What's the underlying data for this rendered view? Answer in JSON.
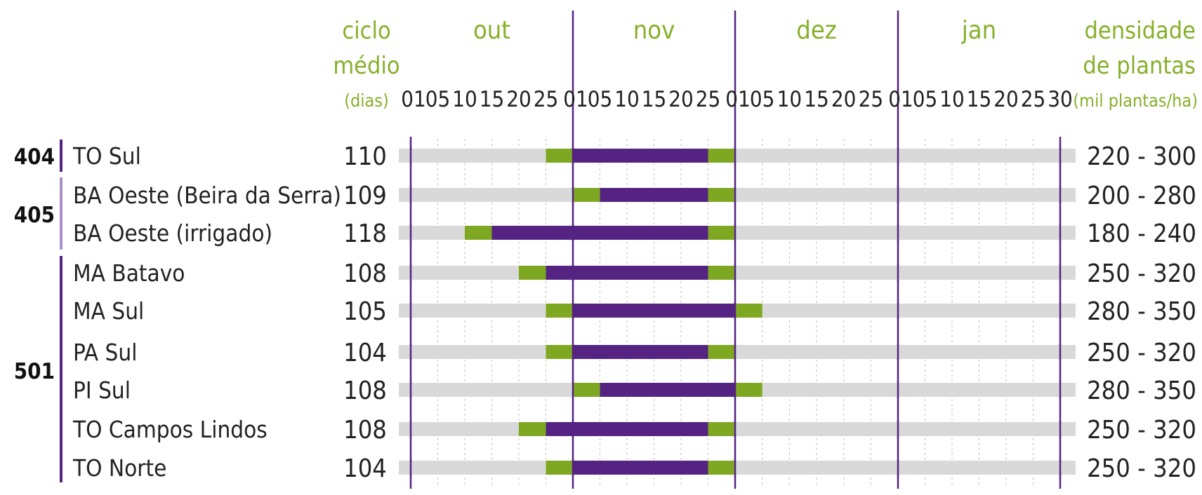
{
  "colors": {
    "track": "#d9d9d9",
    "green": "#7ea722",
    "purple": "#552382",
    "header_green": "#86b02a",
    "divider": "#552382",
    "gridline": "#bdbdbd"
  },
  "headers": {
    "cycle_line1": "ciclo",
    "cycle_line2": "médio",
    "cycle_unit": "(dias)",
    "density_line1": "densidade",
    "density_line2": "de plantas",
    "density_unit": "(mil plantas/ha)"
  },
  "chart_data": {
    "type": "gantt",
    "months": [
      "out",
      "nov",
      "dez",
      "jan"
    ],
    "day_ticks": [
      [
        "01",
        "05",
        "10",
        "15",
        "20",
        "25"
      ],
      [
        "01",
        "05",
        "10",
        "15",
        "20",
        "25"
      ],
      [
        "01",
        "05",
        "10",
        "15",
        "20",
        "25"
      ],
      [
        "01",
        "05",
        "10",
        "15",
        "20",
        "25",
        "30"
      ]
    ],
    "groups": [
      {
        "name": "404",
        "rows": [
          0
        ]
      },
      {
        "name": "405",
        "rows": [
          1,
          2
        ]
      },
      {
        "name": "501",
        "rows": [
          3,
          4,
          5,
          6,
          7,
          8
        ]
      }
    ],
    "rows": [
      {
        "region": "TO Sul",
        "cycle": "110",
        "density": "220 - 300",
        "green_pre": [
          "out 25",
          "nov 01"
        ],
        "purple": [
          "nov 01",
          "nov 25"
        ],
        "green_post": [
          "nov 25",
          "dez 01"
        ]
      },
      {
        "region": "BA Oeste (Beira da Serra)",
        "cycle": "109",
        "density": "200 - 280",
        "green_pre": [
          "nov 01",
          "nov 05"
        ],
        "purple": [
          "nov 05",
          "nov 25"
        ],
        "green_post": [
          "nov 25",
          "dez 01"
        ]
      },
      {
        "region": "BA Oeste (irrigado)",
        "cycle": "118",
        "density": "180 - 240",
        "green_pre": [
          "out 10",
          "out 15"
        ],
        "purple": [
          "out 15",
          "nov 25"
        ],
        "green_post": [
          "nov 25",
          "dez 01"
        ]
      },
      {
        "region": "MA Batavo",
        "cycle": "108",
        "density": "250 - 320",
        "green_pre": [
          "out 20",
          "out 25"
        ],
        "purple": [
          "out 25",
          "nov 25"
        ],
        "green_post": [
          "nov 25",
          "dez 01"
        ]
      },
      {
        "region": "MA Sul",
        "cycle": "105",
        "density": "280 - 350",
        "green_pre": [
          "out 25",
          "nov 01"
        ],
        "purple": [
          "nov 01",
          "dez 01"
        ],
        "green_post": [
          "dez 01",
          "dez 05"
        ]
      },
      {
        "region": "PA Sul",
        "cycle": "104",
        "density": "250 - 320",
        "green_pre": [
          "out 25",
          "nov 01"
        ],
        "purple": [
          "nov 01",
          "nov 25"
        ],
        "green_post": [
          "nov 25",
          "dez 01"
        ]
      },
      {
        "region": "PI Sul",
        "cycle": "108",
        "density": "280 - 350",
        "green_pre": [
          "nov 01",
          "nov 05"
        ],
        "purple": [
          "nov 05",
          "dez 01"
        ],
        "green_post": [
          "dez 01",
          "dez 05"
        ]
      },
      {
        "region": "TO Campos Lindos",
        "cycle": "108",
        "density": "250 - 320",
        "green_pre": [
          "out 20",
          "out 25"
        ],
        "purple": [
          "out 25",
          "nov 25"
        ],
        "green_post": [
          "nov 25",
          "dez 01"
        ]
      },
      {
        "region": "TO Norte",
        "cycle": "104",
        "density": "250 - 320",
        "green_pre": [
          "out 25",
          "nov 01"
        ],
        "purple": [
          "nov 01",
          "nov 25"
        ],
        "green_post": [
          "nov 25",
          "dez 01"
        ]
      }
    ]
  }
}
